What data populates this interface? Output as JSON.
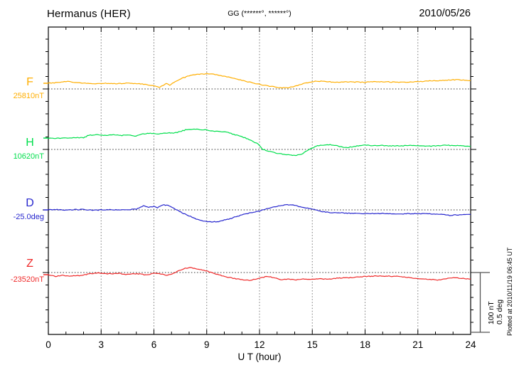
{
  "header": {
    "title": "Hermanus (HER)",
    "gg_label": "GG (******°, ******°)",
    "date": "2010/05/26"
  },
  "footer": {
    "xlabel": "U T (hour)"
  },
  "side": {
    "scale_nt": "100 nT",
    "scale_deg": "0.5 deg",
    "plotted_at": "Plotted at 2010/11/19 06:45 UT"
  },
  "chart_data": {
    "type": "line",
    "title": "Hermanus (HER) magnetogram",
    "date": "2010/05/26",
    "xlabel": "U T (hour)",
    "x_range": [
      0,
      24
    ],
    "x_ticks": [
      0,
      3,
      6,
      9,
      12,
      15,
      18,
      21,
      24
    ],
    "grid": "dotted vertical lines every 3 hours; dotted horizontal baseline per component",
    "legend_position": "left margin, one colored label per stacked trace",
    "scale_bar": {
      "nt": 100,
      "deg": 0.5,
      "label_nt": "100 nT",
      "label_deg": "0.5 deg"
    },
    "colors": {
      "axis": "#000000",
      "grid": "#777777",
      "baseline": "#333333",
      "bracket": "#555555"
    },
    "series": [
      {
        "name": "F",
        "baseline_label": "25810nT",
        "baseline_value": 25810,
        "unit": "nT",
        "color": "#FFAE00",
        "points": [
          [
            0,
            9.5
          ],
          [
            0.5,
            10.7
          ],
          [
            1,
            12.5
          ],
          [
            1.5,
            11.3
          ],
          [
            2,
            9.5
          ],
          [
            2.5,
            8.9
          ],
          [
            3,
            9.5
          ],
          [
            3.5,
            9.5
          ],
          [
            4,
            8.9
          ],
          [
            4.5,
            9.5
          ],
          [
            5,
            8.9
          ],
          [
            5.5,
            7.7
          ],
          [
            6,
            4.8
          ],
          [
            6.3,
            3.0
          ],
          [
            6.5,
            5.4
          ],
          [
            6.7,
            8.9
          ],
          [
            6.9,
            6.5
          ],
          [
            7.2,
            11.9
          ],
          [
            7.6,
            17.9
          ],
          [
            8,
            22.0
          ],
          [
            8.5,
            24.4
          ],
          [
            9,
            25.6
          ],
          [
            9.4,
            24.4
          ],
          [
            9.8,
            22.6
          ],
          [
            10.4,
            18.4
          ],
          [
            11,
            14.3
          ],
          [
            11.6,
            10.1
          ],
          [
            12.2,
            6.5
          ],
          [
            12.8,
            3.6
          ],
          [
            13.2,
            1.8
          ],
          [
            13.6,
            1.8
          ],
          [
            14,
            4.2
          ],
          [
            14.5,
            8.9
          ],
          [
            15,
            12.5
          ],
          [
            15.5,
            13.1
          ],
          [
            16,
            11.9
          ],
          [
            16.5,
            11.3
          ],
          [
            17,
            11.9
          ],
          [
            17.5,
            11.6
          ],
          [
            18,
            11.3
          ],
          [
            18.5,
            11.9
          ],
          [
            19,
            11.9
          ],
          [
            19.5,
            11.6
          ],
          [
            20,
            11.3
          ],
          [
            20.5,
            11.6
          ],
          [
            21,
            11.9
          ],
          [
            21.5,
            13.1
          ],
          [
            22,
            13.7
          ],
          [
            22.5,
            14.3
          ],
          [
            23,
            15.5
          ],
          [
            23.5,
            14.9
          ],
          [
            24,
            14.3
          ]
        ]
      },
      {
        "name": "H",
        "baseline_label": "10620nT",
        "baseline_value": 10620,
        "unit": "nT",
        "color": "#00DF4C",
        "points": [
          [
            0,
            19.0
          ],
          [
            0.5,
            18.4
          ],
          [
            1,
            19.0
          ],
          [
            1.5,
            19.6
          ],
          [
            2,
            19.6
          ],
          [
            2.3,
            23.8
          ],
          [
            2.8,
            24.4
          ],
          [
            3.3,
            23.8
          ],
          [
            3.7,
            25.0
          ],
          [
            4.1,
            23.2
          ],
          [
            4.5,
            24.4
          ],
          [
            4.9,
            22.0
          ],
          [
            5.3,
            25.6
          ],
          [
            5.8,
            26.8
          ],
          [
            6.3,
            25.6
          ],
          [
            6.8,
            28.0
          ],
          [
            7.1,
            26.8
          ],
          [
            7.4,
            29.2
          ],
          [
            7.8,
            32.7
          ],
          [
            8.2,
            33.7
          ],
          [
            8.6,
            33.3
          ],
          [
            9,
            32.7
          ],
          [
            9.3,
            30.9
          ],
          [
            9.6,
            30.3
          ],
          [
            10,
            29.2
          ],
          [
            10.3,
            27.4
          ],
          [
            10.7,
            23.8
          ],
          [
            11.1,
            20.2
          ],
          [
            11.5,
            15.5
          ],
          [
            11.9,
            9.5
          ],
          [
            12.2,
            0.0
          ],
          [
            12.6,
            -3.6
          ],
          [
            13,
            -6.5
          ],
          [
            13.4,
            -8.3
          ],
          [
            13.8,
            -9.5
          ],
          [
            14.1,
            -9.5
          ],
          [
            14.4,
            -7.7
          ],
          [
            14.7,
            -2.4
          ],
          [
            15,
            2.4
          ],
          [
            15.3,
            6.0
          ],
          [
            15.7,
            7.7
          ],
          [
            16.1,
            7.7
          ],
          [
            16.4,
            6.0
          ],
          [
            16.7,
            4.2
          ],
          [
            17,
            3.0
          ],
          [
            17.3,
            4.8
          ],
          [
            17.7,
            6.5
          ],
          [
            18,
            7.1
          ],
          [
            18.5,
            6.5
          ],
          [
            19,
            6.5
          ],
          [
            19.5,
            6.0
          ],
          [
            20,
            6.0
          ],
          [
            20.5,
            6.5
          ],
          [
            21,
            6.0
          ],
          [
            21.5,
            5.4
          ],
          [
            22,
            6.0
          ],
          [
            22.5,
            7.1
          ],
          [
            23,
            6.5
          ],
          [
            23.5,
            6.0
          ],
          [
            24,
            5.4
          ]
        ]
      },
      {
        "name": "D",
        "baseline_label": "-25.0deg",
        "baseline_value": -25.0,
        "unit": "deg",
        "color": "#2727CE",
        "points": [
          [
            0,
            0.0
          ],
          [
            0.5,
            0.003
          ],
          [
            1,
            -0.003
          ],
          [
            1.5,
            0.002
          ],
          [
            2,
            0.003
          ],
          [
            2.5,
            -0.002
          ],
          [
            3,
            0.0
          ],
          [
            3.5,
            0.002
          ],
          [
            4,
            0.0
          ],
          [
            4.5,
            0.003
          ],
          [
            5,
            0.006
          ],
          [
            5.4,
            0.036
          ],
          [
            5.7,
            0.021
          ],
          [
            6,
            0.03
          ],
          [
            6.2,
            0.018
          ],
          [
            6.5,
            0.042
          ],
          [
            6.8,
            0.039
          ],
          [
            7.1,
            0.018
          ],
          [
            7.3,
            0.0
          ],
          [
            7.6,
            -0.024
          ],
          [
            8,
            -0.05
          ],
          [
            8.4,
            -0.074
          ],
          [
            8.8,
            -0.092
          ],
          [
            9.2,
            -0.099
          ],
          [
            9.6,
            -0.098
          ],
          [
            10,
            -0.086
          ],
          [
            10.5,
            -0.065
          ],
          [
            11,
            -0.042
          ],
          [
            11.5,
            -0.024
          ],
          [
            12,
            -0.009
          ],
          [
            12.5,
            0.015
          ],
          [
            13,
            0.03
          ],
          [
            13.5,
            0.042
          ],
          [
            13.9,
            0.039
          ],
          [
            14.4,
            0.024
          ],
          [
            14.9,
            0.009
          ],
          [
            15.2,
            0.0
          ],
          [
            15.6,
            -0.015
          ],
          [
            16,
            -0.021
          ],
          [
            16.5,
            -0.024
          ],
          [
            17,
            -0.027
          ],
          [
            17.5,
            -0.029
          ],
          [
            18,
            -0.03
          ],
          [
            18.5,
            -0.03
          ],
          [
            19,
            -0.03
          ],
          [
            19.5,
            -0.032
          ],
          [
            20,
            -0.033
          ],
          [
            20.5,
            -0.031
          ],
          [
            21,
            -0.03
          ],
          [
            21.5,
            -0.032
          ],
          [
            22,
            -0.033
          ],
          [
            22.5,
            -0.039
          ],
          [
            22.8,
            -0.045
          ],
          [
            23.3,
            -0.042
          ],
          [
            23.7,
            -0.039
          ],
          [
            24,
            -0.039
          ]
        ]
      },
      {
        "name": "Z",
        "baseline_label": "-23520nT",
        "baseline_value": -23520,
        "unit": "nT",
        "color": "#EF2929",
        "points": [
          [
            0,
            -3.6
          ],
          [
            0.4,
            -6.5
          ],
          [
            0.8,
            -4.8
          ],
          [
            1.2,
            -6.0
          ],
          [
            1.6,
            -5.4
          ],
          [
            2,
            -4.2
          ],
          [
            2.4,
            -1.8
          ],
          [
            2.8,
            -0.6
          ],
          [
            3.2,
            -1.8
          ],
          [
            3.6,
            -2.4
          ],
          [
            4,
            -1.2
          ],
          [
            4.4,
            -3.0
          ],
          [
            4.8,
            -1.8
          ],
          [
            5.2,
            -2.4
          ],
          [
            5.6,
            -4.2
          ],
          [
            6,
            -1.2
          ],
          [
            6.4,
            -2.4
          ],
          [
            6.8,
            -4.8
          ],
          [
            7.1,
            -1.2
          ],
          [
            7.4,
            3.0
          ],
          [
            7.7,
            6.5
          ],
          [
            8,
            8.3
          ],
          [
            8.3,
            7.1
          ],
          [
            8.6,
            5.4
          ],
          [
            9,
            2.4
          ],
          [
            9.3,
            -0.6
          ],
          [
            9.7,
            -4.2
          ],
          [
            10.1,
            -7.1
          ],
          [
            10.5,
            -9.5
          ],
          [
            11,
            -11.9
          ],
          [
            11.5,
            -13.1
          ],
          [
            12,
            -9.5
          ],
          [
            12.4,
            -6.5
          ],
          [
            12.8,
            -8.3
          ],
          [
            13.2,
            -11.9
          ],
          [
            13.6,
            -10.7
          ],
          [
            14,
            -12.5
          ],
          [
            14.4,
            -10.7
          ],
          [
            14.9,
            -11.3
          ],
          [
            15.4,
            -10.1
          ],
          [
            15.9,
            -11.3
          ],
          [
            16.4,
            -9.5
          ],
          [
            17,
            -8.9
          ],
          [
            17.5,
            -7.7
          ],
          [
            18,
            -6.5
          ],
          [
            18.6,
            -6.0
          ],
          [
            19.2,
            -6.0
          ],
          [
            19.8,
            -6.5
          ],
          [
            20.4,
            -8.3
          ],
          [
            21,
            -10.1
          ],
          [
            21.6,
            -11.3
          ],
          [
            22.2,
            -12.5
          ],
          [
            22.7,
            -9.5
          ],
          [
            23.1,
            -8.3
          ],
          [
            23.5,
            -10.1
          ],
          [
            24,
            -10.7
          ]
        ]
      }
    ]
  }
}
